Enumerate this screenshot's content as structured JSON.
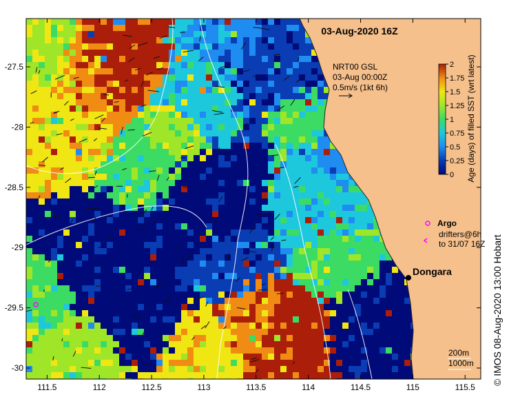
{
  "title": "03-Aug-2020 16Z",
  "current_note": {
    "line1": "NRT00 GSL",
    "line2": "03-Aug 00:00Z",
    "line3": "0.5m/s (1kt 6h)"
  },
  "colorbar": {
    "label": "Age (days) of filled SST (wrt latest)",
    "ticks": [
      "0",
      "0.25",
      "0.5",
      "0.75",
      "1",
      "1.25",
      "1.5",
      "1.75",
      "2"
    ],
    "min": 0,
    "max": 2,
    "colors": [
      "#000a78",
      "#0a3cb4",
      "#1e8cf0",
      "#1ec8dc",
      "#3cdc64",
      "#a0e628",
      "#f0e614",
      "#f08c14",
      "#aa1e0a"
    ]
  },
  "legend": {
    "argo_label": "Argo",
    "drifters_line1": "drifters@6h",
    "drifters_line2": "to 31/07 16Z",
    "argo_color": "#ff00ff"
  },
  "place": {
    "name": "Dongara"
  },
  "scale": {
    "depth1": "200m",
    "depth2": "1000m"
  },
  "credit": "©  IMOS 08-Aug-2020 13:00 Hobart",
  "axes": {
    "x_ticks": [
      "111.5",
      "112",
      "112.5",
      "113",
      "113.5",
      "114",
      "114.5",
      "115",
      "115.5"
    ],
    "y_ticks": [
      "-27.5",
      "-28",
      "-28.5",
      "-29",
      "-29.5",
      "-30"
    ]
  },
  "land_color": "#f5c08c"
}
